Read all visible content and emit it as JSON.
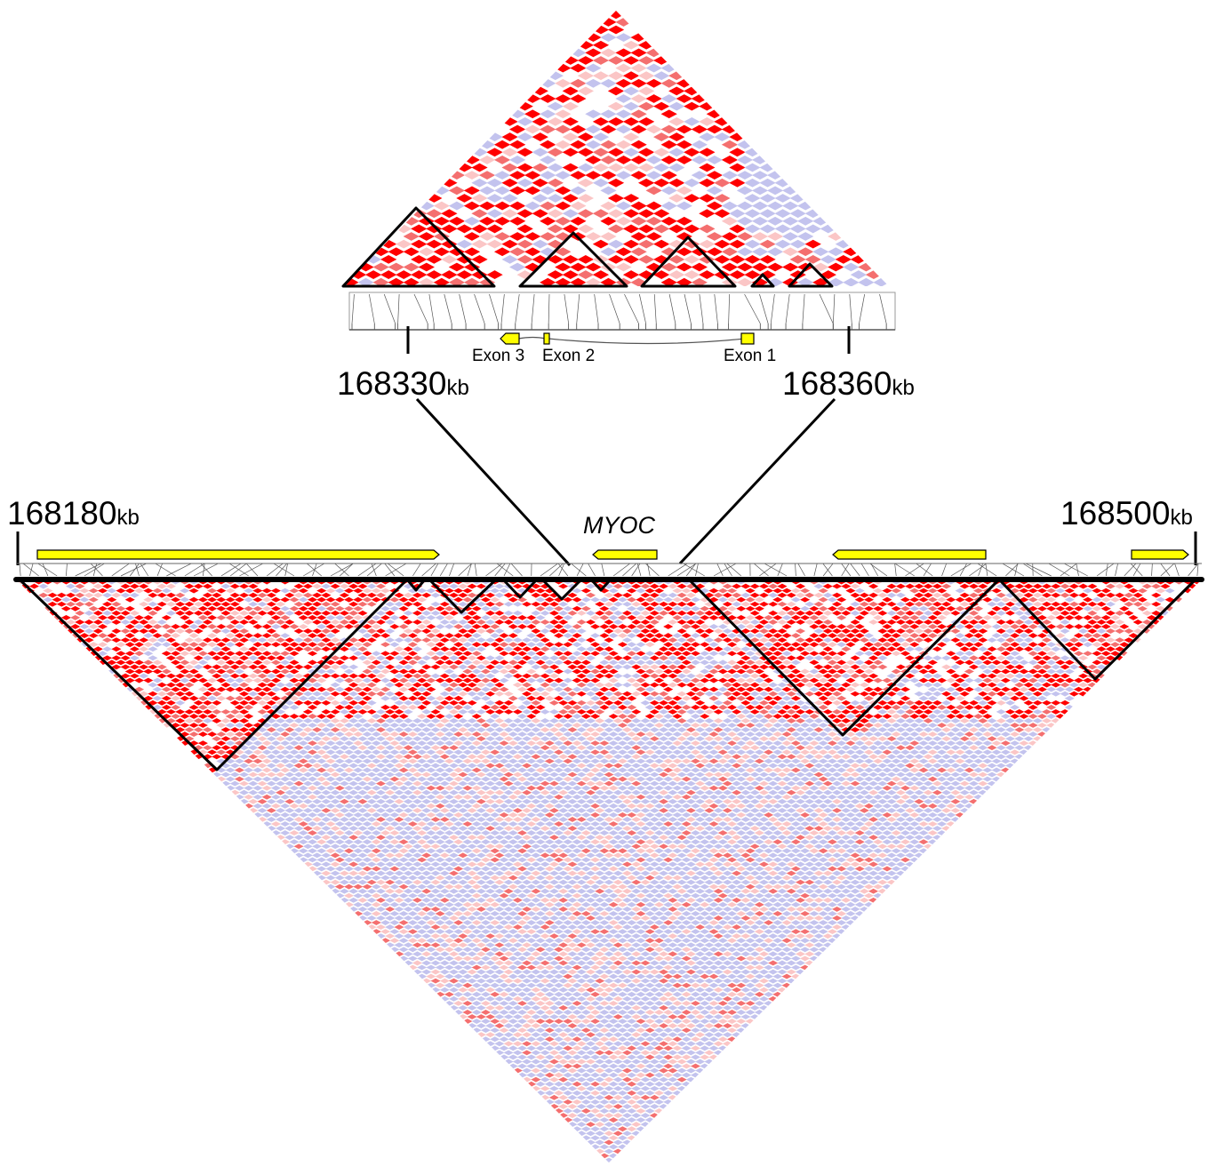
{
  "zoom_view": {
    "start": {
      "value": "168330",
      "unit": "kb"
    },
    "end": {
      "value": "168360",
      "unit": "kb"
    },
    "exons": [
      {
        "label": "Exon 3"
      },
      {
        "label": "Exon 2"
      },
      {
        "label": "Exon 1"
      }
    ]
  },
  "main_view": {
    "start": {
      "value": "168180",
      "unit": "kb"
    },
    "end": {
      "value": "168500",
      "unit": "kb"
    },
    "gene_label": "MYOC"
  },
  "colors": {
    "strong_ld": "#ff0000",
    "medium_ld": "#f46f6f",
    "weak_ld": "#fbc6c6",
    "low_lod": "#c3c3ee",
    "gene": "#ffff00",
    "block_outline": "#000000"
  }
}
